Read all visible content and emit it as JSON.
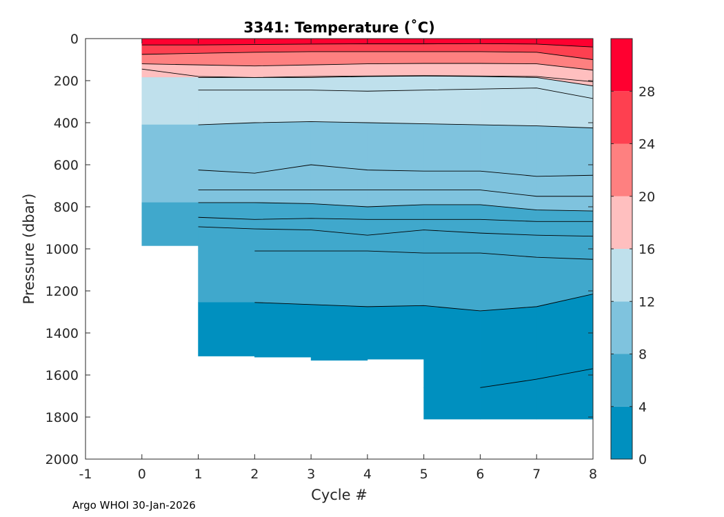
{
  "chart_data": {
    "type": "heatmap",
    "title": "3341:  Temperature (˚C)",
    "xlabel": "Cycle #",
    "ylabel": "Pressure (dbar)",
    "xlim": [
      -1,
      8
    ],
    "ylim": [
      0,
      2000
    ],
    "y_reversed": true,
    "xticks": [
      -1,
      0,
      1,
      2,
      3,
      4,
      5,
      6,
      7,
      8
    ],
    "yticks": [
      0,
      200,
      400,
      600,
      800,
      1000,
      1200,
      1400,
      1600,
      1800,
      2000
    ],
    "colorbar": {
      "range": [
        0,
        32
      ],
      "ticks": [
        0,
        4,
        8,
        12,
        16,
        20,
        24,
        28
      ],
      "bins": [
        {
          "from": 0,
          "to": 4,
          "color": "#0090bf"
        },
        {
          "from": 4,
          "to": 8,
          "color": "#40a8cc"
        },
        {
          "from": 8,
          "to": 12,
          "color": "#7fc3de"
        },
        {
          "from": 12,
          "to": 16,
          "color": "#bfe0ec"
        },
        {
          "from": 16,
          "to": 20,
          "color": "#ffbfbf"
        },
        {
          "from": 20,
          "to": 24,
          "color": "#fe8080"
        },
        {
          "from": 24,
          "to": 28,
          "color": "#fe4050"
        },
        {
          "from": 28,
          "to": 32,
          "color": "#ff0030"
        }
      ]
    },
    "cycles": [
      0,
      1,
      2,
      3,
      4,
      5,
      6,
      7,
      8
    ],
    "max_pressure": [
      145,
      985,
      1510,
      1515,
      1530,
      1525,
      1810,
      1810,
      1810
    ],
    "isotherms": [
      {
        "temp": 26,
        "pressure": [
          30,
          30,
          28,
          26,
          25,
          25,
          24,
          26,
          40
        ]
      },
      {
        "temp": 24,
        "pressure": [
          75,
          70,
          65,
          62,
          62,
          62,
          62,
          65,
          100
        ]
      },
      {
        "temp": 20,
        "pressure": [
          120,
          125,
          130,
          125,
          120,
          118,
          118,
          120,
          150
        ]
      },
      {
        "temp": 18,
        "pressure": [
          145,
          180,
          185,
          180,
          178,
          176,
          178,
          180,
          205
        ]
      },
      {
        "temp": 16,
        "pressure": [
          null,
          185,
          185,
          185,
          180,
          178,
          180,
          185,
          225
        ]
      },
      {
        "temp": 14,
        "pressure": [
          null,
          245,
          245,
          245,
          250,
          245,
          240,
          235,
          285
        ]
      },
      {
        "temp": 12,
        "pressure": [
          null,
          410,
          400,
          395,
          400,
          405,
          410,
          415,
          425
        ]
      },
      {
        "temp": 10,
        "pressure": [
          null,
          625,
          640,
          600,
          625,
          630,
          630,
          655,
          650
        ]
      },
      {
        "temp": 9,
        "pressure": [
          null,
          720,
          720,
          720,
          720,
          720,
          720,
          750,
          750
        ]
      },
      {
        "temp": 8,
        "pressure": [
          null,
          780,
          780,
          785,
          800,
          790,
          790,
          815,
          820
        ]
      },
      {
        "temp": 7,
        "pressure": [
          null,
          850,
          860,
          855,
          860,
          860,
          860,
          870,
          870
        ]
      },
      {
        "temp": 6,
        "pressure": [
          null,
          895,
          905,
          910,
          935,
          910,
          925,
          935,
          940
        ]
      },
      {
        "temp": 5,
        "pressure": [
          null,
          null,
          1010,
          1010,
          1010,
          1020,
          1020,
          1040,
          1050
        ]
      },
      {
        "temp": 4,
        "pressure": [
          null,
          null,
          1255,
          1265,
          1275,
          1270,
          1295,
          1275,
          1215
        ]
      },
      {
        "temp": 3,
        "pressure": [
          null,
          null,
          null,
          null,
          null,
          null,
          1660,
          1620,
          1570
        ]
      }
    ]
  },
  "footer": {
    "text": "Argo WHOI 30-Jan-2026"
  }
}
